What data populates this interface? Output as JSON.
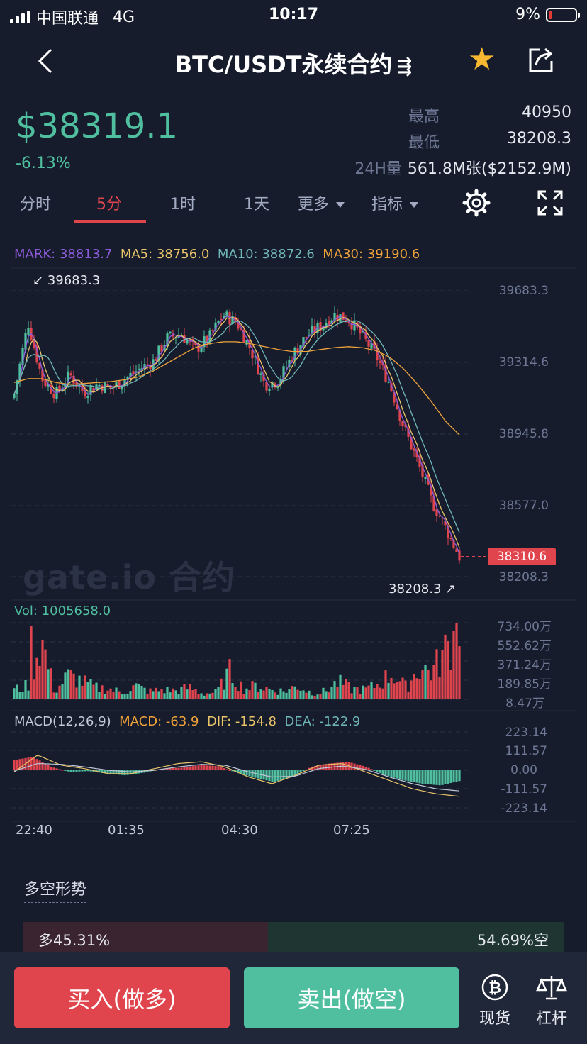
{
  "status": {
    "carrier": "中国联通",
    "network": "4G",
    "time": "10:17",
    "battery": "9%"
  },
  "header": {
    "title": "BTC/USDT永续合约",
    "swap_glyph": "⇶",
    "back_icon": "chevron-left-icon",
    "favorite_icon": "star-icon",
    "share_icon": "share-icon"
  },
  "price": {
    "last": "$38319.1",
    "change": "-6.13%",
    "color_up": "#4fbf9f"
  },
  "stats": {
    "high_label": "最高",
    "high": "40950",
    "low_label": "最低",
    "low": "38208.3",
    "vol_label": "24H量",
    "vol": "561.8M张($2152.9M)"
  },
  "tabs": [
    {
      "label": "分时"
    },
    {
      "label": "5分"
    },
    {
      "label": "1时"
    },
    {
      "label": "1天"
    },
    {
      "label": "更多"
    },
    {
      "label": "指标"
    }
  ],
  "active_tab": "5分",
  "chart_legend": {
    "mark": "MARK: 38813.7",
    "ma5": "MA5: 38756.0",
    "ma10": "MA10: 38872.6",
    "ma30": "MA30: 39190.6"
  },
  "watermark": "gate.io 合约",
  "chart_data": [
    {
      "type": "candlestick",
      "interval": "5分",
      "y_ticks": [
        "39683.3",
        "39314.6",
        "38945.8",
        "38577.0",
        "38208.3"
      ],
      "ylim": [
        38208.3,
        39683.3
      ],
      "high_marker": "39683.3",
      "low_marker": "38208.3",
      "current_price_tag": "38310.6",
      "x_ticks": [
        "22:40",
        "01:35",
        "04:30",
        "07:25"
      ],
      "close_path": [
        39150,
        39520,
        39230,
        39150,
        39250,
        39160,
        39200,
        39180,
        39230,
        39280,
        39320,
        39440,
        39460,
        39380,
        39440,
        39560,
        39520,
        39380,
        39200,
        39220,
        39350,
        39450,
        39500,
        39560,
        39540,
        39450,
        39350,
        39200,
        38980,
        38800,
        38600,
        38460,
        38310
      ],
      "ma30_path": [
        39210,
        39230,
        39230,
        39210,
        39200,
        39205,
        39210,
        39215,
        39225,
        39240,
        39270,
        39310,
        39350,
        39390,
        39410,
        39420,
        39420,
        39410,
        39395,
        39380,
        39370,
        39370,
        39380,
        39390,
        39395,
        39390,
        39375,
        39340,
        39280,
        39200,
        39110,
        39010,
        38940
      ]
    },
    {
      "type": "bar",
      "title": "Vol: 1005658.0",
      "y_ticks": [
        "734.00万",
        "552.62万",
        "371.24万",
        "189.85万",
        "8.47万"
      ],
      "ylim": [
        8.47,
        734.0
      ],
      "unit": "万",
      "values": [
        110,
        150,
        640,
        90,
        260,
        200,
        130,
        120,
        80,
        150,
        90,
        110,
        100,
        130,
        70,
        85,
        300,
        120,
        150,
        110,
        95,
        150,
        80,
        90,
        190,
        120,
        110,
        170,
        280,
        140,
        340,
        300,
        530,
        750
      ]
    },
    {
      "type": "bar",
      "title": "MACD(12,26,9)",
      "legend": {
        "macd": "MACD: -63.9",
        "dif": "DIF: -154.8",
        "dea": "DEA: -122.9"
      },
      "y_ticks": [
        "223.14",
        "111.57",
        "0.00",
        "-111.57",
        "-223.14"
      ],
      "ylim": [
        -223.14,
        223.14
      ],
      "values": [
        60,
        80,
        20,
        -10,
        -5,
        -20,
        -30,
        -15,
        10,
        15,
        30,
        25,
        -15,
        -45,
        -70,
        -40,
        20,
        40,
        50,
        20,
        -30,
        -60,
        -80,
        -90,
        -64
      ],
      "dif": [
        -10,
        90,
        30,
        10,
        -20,
        -20,
        10,
        40,
        50,
        20,
        -40,
        -80,
        -30,
        30,
        40,
        -10,
        -60,
        -110,
        -140,
        -155
      ],
      "dea": [
        -5,
        40,
        35,
        20,
        0,
        -10,
        0,
        20,
        35,
        30,
        -10,
        -40,
        -35,
        10,
        25,
        5,
        -40,
        -80,
        -110,
        -123
      ]
    }
  ],
  "long_short": {
    "title": "多空形势",
    "long": "多45.31%",
    "short": "54.69%空",
    "long_pct": 45.31
  },
  "actions": {
    "buy": "买入(做多)",
    "sell": "卖出(做空)",
    "spot": "现货",
    "margin": "杠杆"
  }
}
